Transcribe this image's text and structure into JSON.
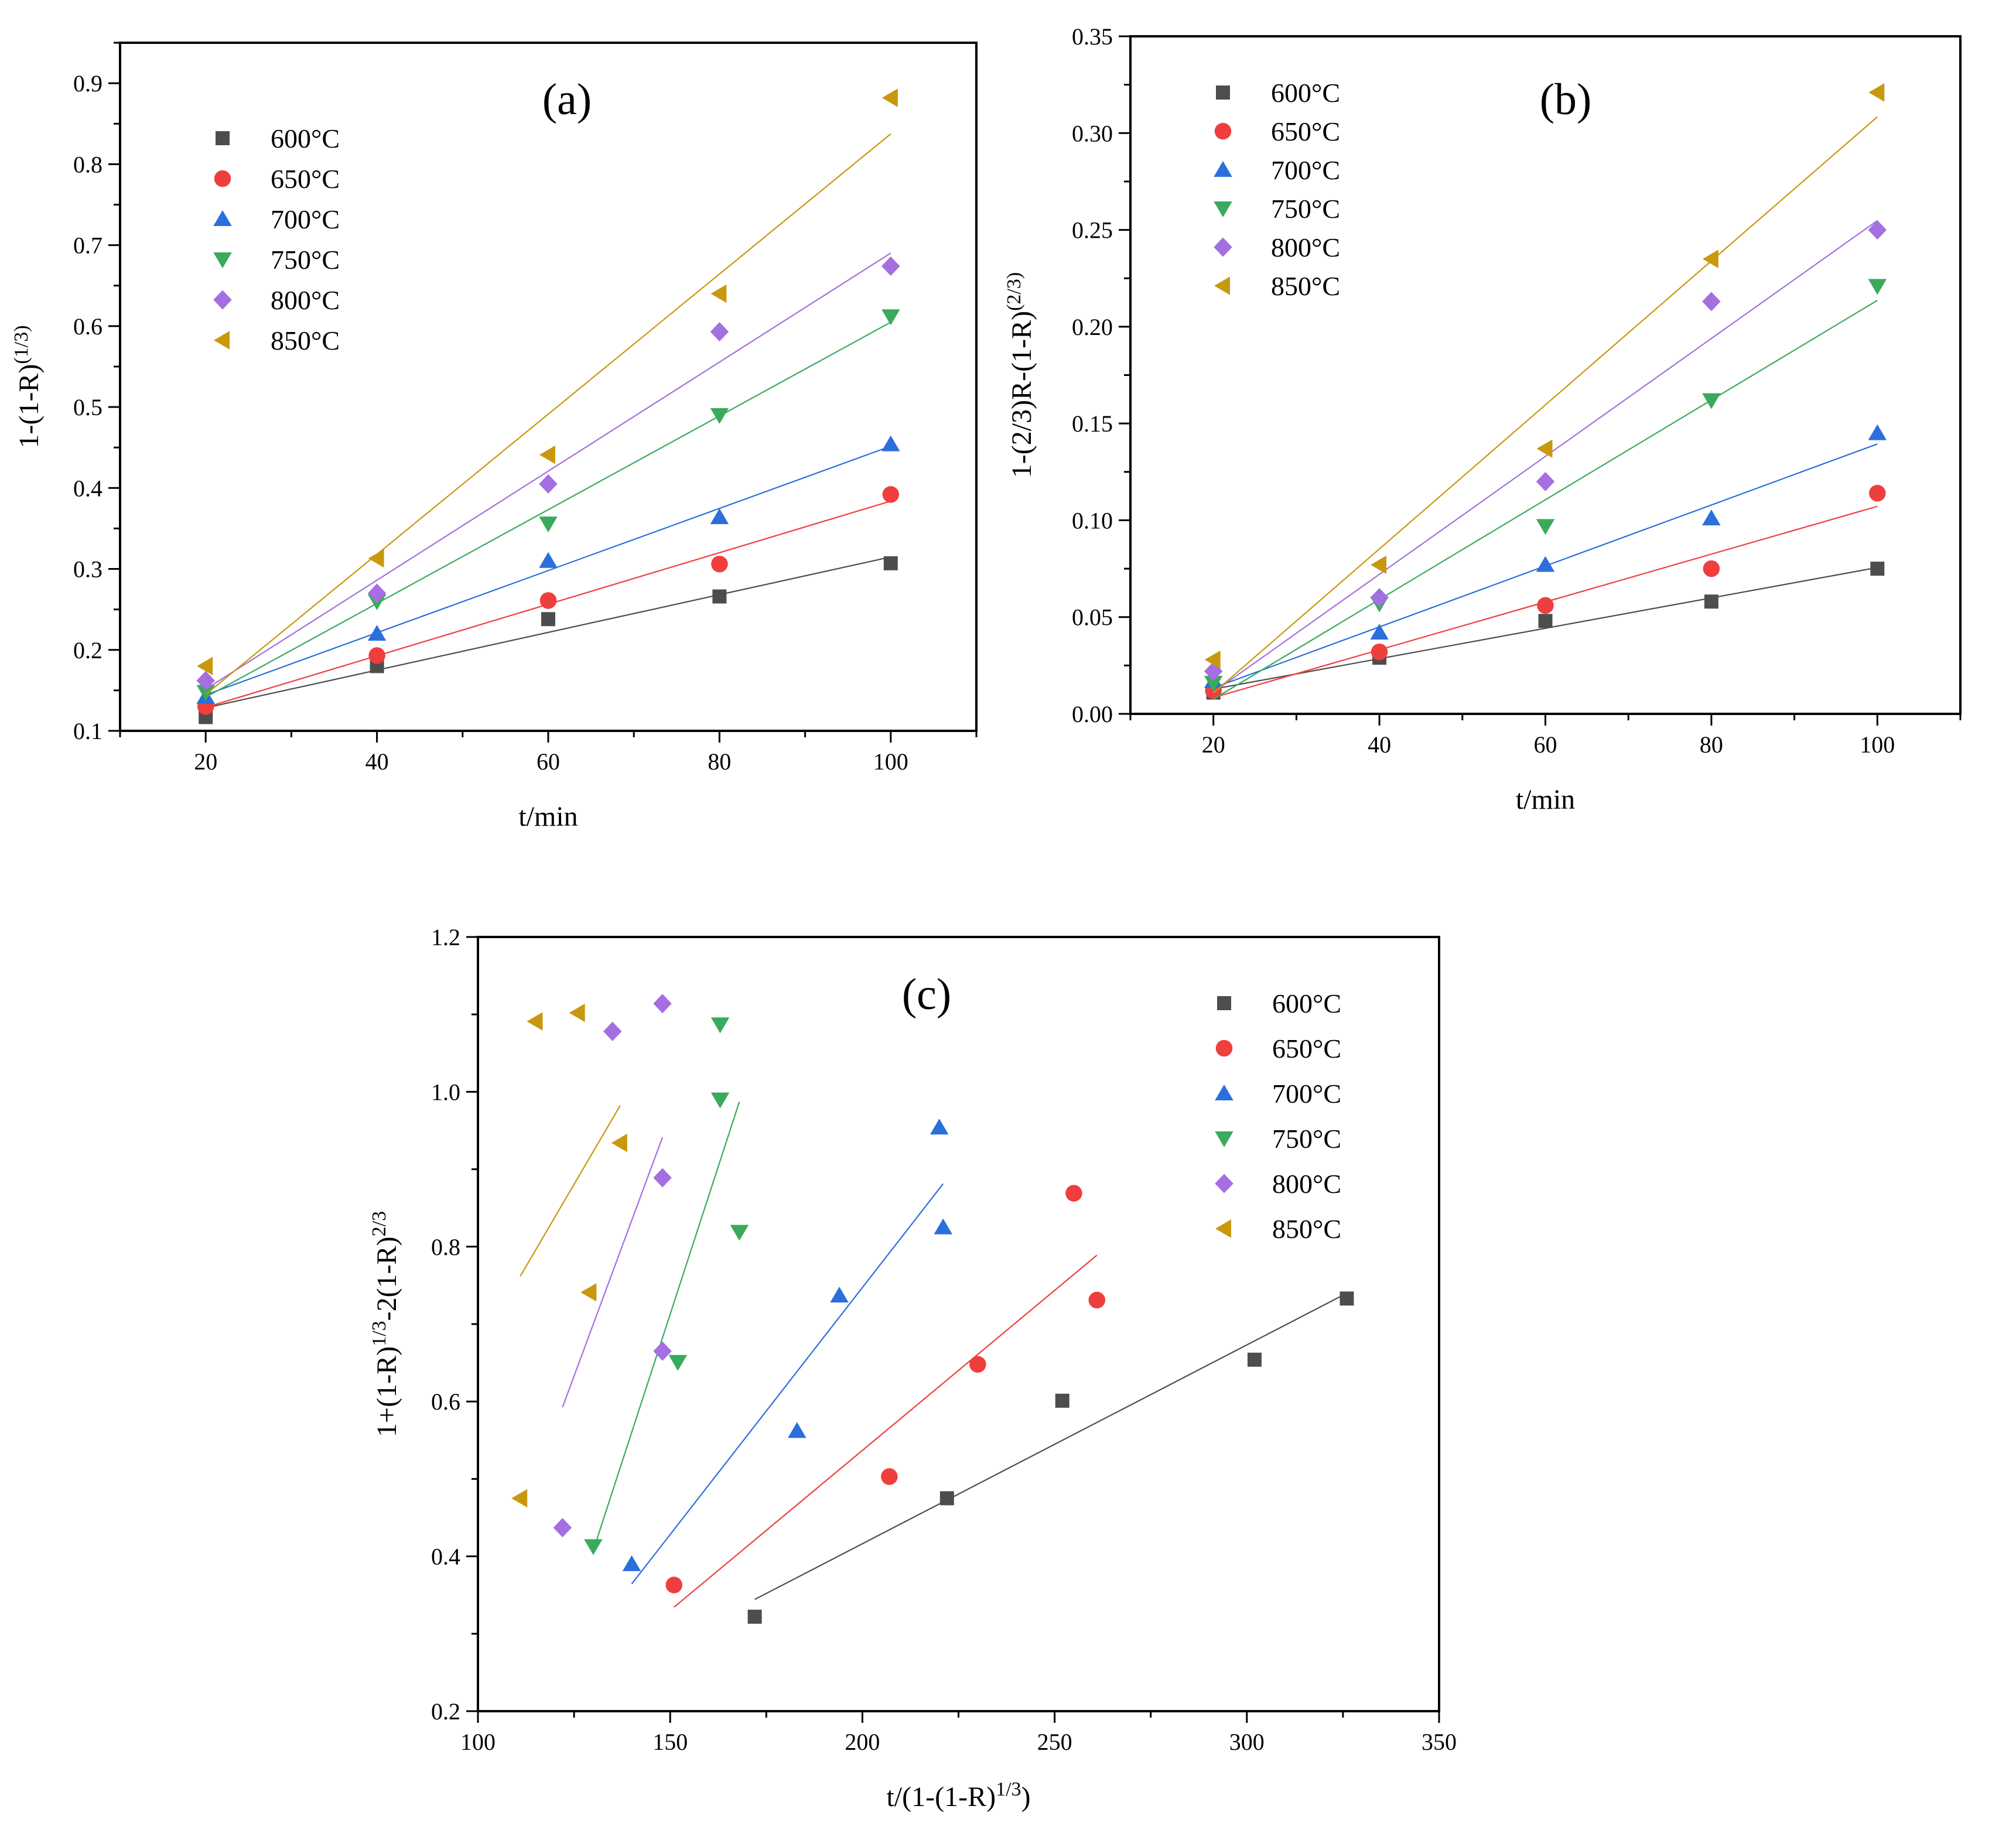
{
  "colors": {
    "600": "#4d4d4d",
    "650": "#ef3e3e",
    "700": "#2a6fdb",
    "750": "#3aaa5c",
    "800": "#a46fe0",
    "850": "#c8980e"
  },
  "chart_data": [
    {
      "type": "scatter",
      "panel_label": "(a)",
      "xlabel": "t/min",
      "ylabel": "1-(1-R)(1/3)",
      "xlim": [
        10,
        110
      ],
      "ylim": [
        0.1,
        0.95
      ],
      "xticks": [
        20,
        40,
        60,
        80,
        100
      ],
      "yticks": [
        0.1,
        0.2,
        0.3,
        0.4,
        0.5,
        0.6,
        0.7,
        0.8,
        0.9
      ],
      "ytick_labels": [
        "0.1",
        "0.2",
        "0.3",
        "0.4",
        "0.5",
        "0.6",
        "0.7",
        "0.8",
        "0.9"
      ],
      "legend_position": "upper-left",
      "fit_lines": true,
      "series": [
        {
          "name": "600°C",
          "marker": "square",
          "color_key": "600",
          "x": [
            20,
            40,
            60,
            80,
            100
          ],
          "y": [
            0.117,
            0.18,
            0.238,
            0.266,
            0.307
          ]
        },
        {
          "name": "650°C",
          "marker": "circle",
          "color_key": "650",
          "x": [
            20,
            40,
            60,
            80,
            100
          ],
          "y": [
            0.13,
            0.193,
            0.261,
            0.306,
            0.392
          ]
        },
        {
          "name": "700°C",
          "marker": "triangle-up",
          "color_key": "700",
          "x": [
            20,
            40,
            60,
            80,
            100
          ],
          "y": [
            0.142,
            0.22,
            0.31,
            0.364,
            0.454
          ]
        },
        {
          "name": "750°C",
          "marker": "triangle-down",
          "color_key": "750",
          "x": [
            20,
            40,
            60,
            80,
            100
          ],
          "y": [
            0.148,
            0.26,
            0.356,
            0.49,
            0.612
          ]
        },
        {
          "name": "800°C",
          "marker": "diamond",
          "color_key": "800",
          "x": [
            20,
            40,
            60,
            80,
            100
          ],
          "y": [
            0.162,
            0.27,
            0.405,
            0.593,
            0.674
          ]
        },
        {
          "name": "850°C",
          "marker": "triangle-left",
          "color_key": "850",
          "x": [
            20,
            40,
            60,
            80,
            100
          ],
          "y": [
            0.18,
            0.313,
            0.441,
            0.64,
            0.882
          ]
        }
      ]
    },
    {
      "type": "scatter",
      "panel_label": "(b)",
      "xlabel": "t/min",
      "ylabel": "1-(2/3)R-(1-R)(2/3)",
      "xlim": [
        10,
        110
      ],
      "ylim": [
        0,
        0.35
      ],
      "xticks": [
        20,
        40,
        60,
        80,
        100
      ],
      "yticks": [
        0,
        0.05,
        0.1,
        0.15,
        0.2,
        0.25,
        0.3,
        0.35
      ],
      "ytick_labels": [
        "0.00",
        "0.05",
        "0.10",
        "0.15",
        "0.20",
        "0.25",
        "0.30",
        "0.35"
      ],
      "legend_position": "upper-left",
      "fit_lines": true,
      "series": [
        {
          "name": "600°C",
          "marker": "square",
          "color_key": "600",
          "x": [
            20,
            40,
            60,
            80,
            100
          ],
          "y": [
            0.011,
            0.029,
            0.048,
            0.058,
            0.075
          ]
        },
        {
          "name": "650°C",
          "marker": "circle",
          "color_key": "650",
          "x": [
            20,
            40,
            60,
            80,
            100
          ],
          "y": [
            0.012,
            0.032,
            0.056,
            0.075,
            0.114
          ]
        },
        {
          "name": "700°C",
          "marker": "triangle-up",
          "color_key": "700",
          "x": [
            20,
            40,
            60,
            80,
            100
          ],
          "y": [
            0.017,
            0.042,
            0.077,
            0.101,
            0.145
          ]
        },
        {
          "name": "750°C",
          "marker": "triangle-down",
          "color_key": "750",
          "x": [
            20,
            40,
            60,
            80,
            100
          ],
          "y": [
            0.016,
            0.057,
            0.097,
            0.162,
            0.221
          ]
        },
        {
          "name": "800°C",
          "marker": "diamond",
          "color_key": "800",
          "x": [
            20,
            40,
            60,
            80,
            100
          ],
          "y": [
            0.022,
            0.06,
            0.12,
            0.213,
            0.25
          ]
        },
        {
          "name": "850°C",
          "marker": "triangle-left",
          "color_key": "850",
          "x": [
            20,
            40,
            60,
            80,
            100
          ],
          "y": [
            0.028,
            0.077,
            0.137,
            0.235,
            0.321
          ]
        }
      ]
    },
    {
      "type": "scatter",
      "panel_label": "(c)",
      "xlabel": "t/(1-(1-R)1/3)",
      "ylabel": "1+(1-R)1/3-2(1-R)2/3",
      "xlim": [
        100,
        350
      ],
      "ylim": [
        0.2,
        1.2
      ],
      "xticks": [
        100,
        150,
        200,
        250,
        300,
        350
      ],
      "yticks": [
        0.2,
        0.4,
        0.6,
        0.8,
        1.0,
        1.2
      ],
      "ytick_labels": [
        "0.2",
        "0.4",
        "0.6",
        "0.8",
        "1.0",
        "1.2"
      ],
      "legend_position": "upper-right",
      "fit_lines": true,
      "series": [
        {
          "name": "600°C",
          "marker": "square",
          "color_key": "600",
          "x": [
            172,
            222,
            252,
            302,
            326
          ],
          "y": [
            0.322,
            0.475,
            0.601,
            0.654,
            0.733
          ]
        },
        {
          "name": "650°C",
          "marker": "circle",
          "color_key": "650",
          "x": [
            151,
            207,
            230,
            255,
            261
          ],
          "y": [
            0.363,
            0.503,
            0.648,
            0.869,
            0.731
          ]
        },
        {
          "name": "700°C",
          "marker": "triangle-up",
          "color_key": "700",
          "x": [
            140,
            183,
            194,
            220,
            221
          ],
          "y": [
            0.39,
            0.562,
            0.737,
            0.954,
            0.825
          ]
        },
        {
          "name": "750°C",
          "marker": "triangle-down",
          "color_key": "750",
          "x": [
            130,
            152,
            163,
            163,
            168
          ],
          "y": [
            0.413,
            0.651,
            0.99,
            1.087,
            0.819
          ]
        },
        {
          "name": "800°C",
          "marker": "diamond",
          "color_key": "800",
          "x": [
            122,
            135,
            148,
            148,
            148
          ],
          "y": [
            0.437,
            1.078,
            1.114,
            0.889,
            0.665
          ]
        },
        {
          "name": "850°C",
          "marker": "triangle-left",
          "color_key": "850",
          "x": [
            111,
            115,
            126,
            129,
            137
          ],
          "y": [
            0.475,
            1.091,
            1.102,
            0.741,
            0.934
          ]
        }
      ]
    }
  ]
}
